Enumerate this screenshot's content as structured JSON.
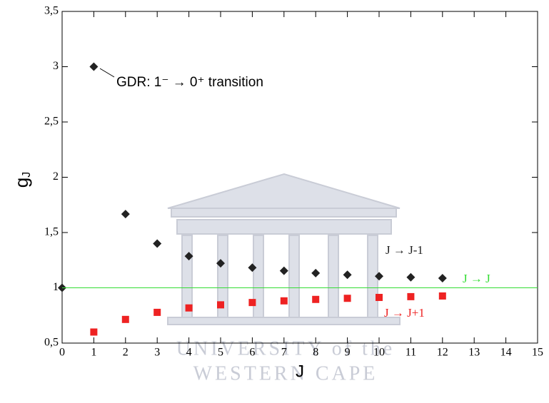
{
  "chart_data": {
    "type": "scatter",
    "xlabel": "J",
    "ylabel": "g",
    "ylabel_subscript": "J",
    "annotation": "GDR: 1⁻ → 0⁺ transition",
    "watermark": [
      "UNIVERSITY of the",
      "WESTERN CAPE"
    ],
    "xlim": [
      0,
      15
    ],
    "xticks": [
      0,
      1,
      2,
      3,
      4,
      5,
      6,
      7,
      8,
      9,
      10,
      11,
      12,
      13,
      14,
      15
    ],
    "ylim": [
      0.5,
      3.5
    ],
    "yticks": [
      {
        "value": 0.5,
        "label": "0,5"
      },
      1,
      {
        "value": 1.5,
        "label": "1,5"
      },
      2,
      {
        "value": 2.5,
        "label": "2,5"
      },
      3,
      {
        "value": 3.5,
        "label": "3,5"
      }
    ],
    "series": [
      {
        "name": "J → J-1",
        "color": "#222222",
        "marker": "diamond",
        "x": [
          0,
          1,
          2,
          3,
          4,
          5,
          6,
          7,
          8,
          9,
          10,
          11,
          12
        ],
        "values": [
          1,
          3,
          1.667,
          1.4,
          1.286,
          1.222,
          1.182,
          1.154,
          1.133,
          1.118,
          1.105,
          1.095,
          1.087
        ]
      },
      {
        "name": "J → J",
        "color": "#33dd33",
        "marker": "line",
        "x": [
          0,
          15
        ],
        "values": [
          1,
          1
        ]
      },
      {
        "name": "J → J+1",
        "color": "#ee2222",
        "marker": "square",
        "x": [
          1,
          2,
          3,
          4,
          5,
          6,
          7,
          8,
          9,
          10,
          11,
          12
        ],
        "values": [
          0.6,
          0.714,
          0.778,
          0.818,
          0.846,
          0.867,
          0.882,
          0.895,
          0.905,
          0.913,
          0.92,
          0.926
        ]
      }
    ]
  }
}
